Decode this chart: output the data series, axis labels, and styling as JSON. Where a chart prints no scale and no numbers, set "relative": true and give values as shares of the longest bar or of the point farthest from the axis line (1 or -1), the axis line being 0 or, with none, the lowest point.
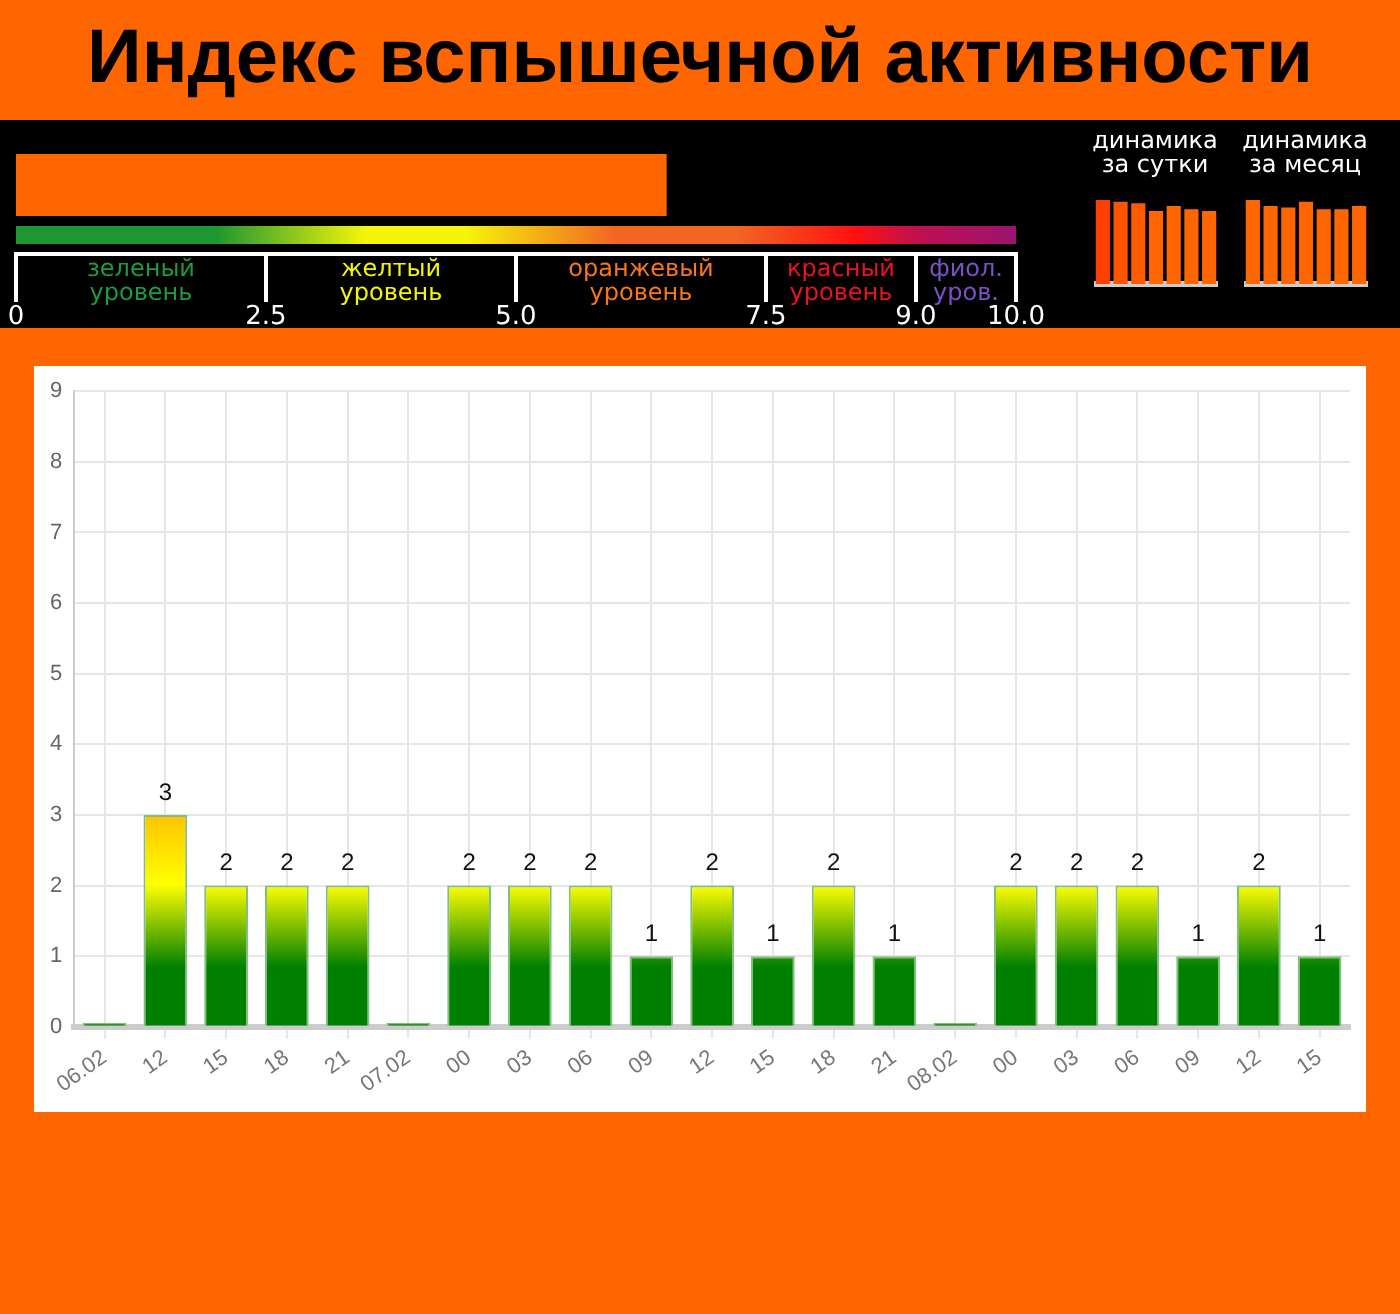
{
  "chart_data": [
    {
      "type": "bar",
      "title": "Индекс вспышечной активности",
      "orientation": "horizontal",
      "categories": [
        null
      ],
      "values": [
        6.5
      ],
      "color": "#ff6600",
      "xlim": [
        0,
        10
      ],
      "xticks": [
        0,
        2.5,
        {
          "value": 5,
          "label": "5.0"
        },
        7.5,
        {
          "value": 9,
          "label": "9.0"
        },
        {
          "value": 10,
          "label": "10.0"
        }
      ],
      "annotations": [
        "зеленый уровень",
        "желтый уровень",
        "оранжевый уровень",
        "красный уровень",
        "фиол. уров."
      ]
    },
    {
      "type": "bar",
      "title": "динамика за сутки",
      "relative": true,
      "categories": [
        null,
        null,
        null,
        null,
        null,
        null,
        null
      ],
      "values": [
        1,
        0.98,
        0.96,
        0.87,
        0.93,
        0.89,
        0.87
      ],
      "colors": [
        "#ff4000",
        "#ff5500",
        "#ff5a00",
        "#ff6600",
        "#ff6600",
        "#ff6600",
        "#ff6600"
      ]
    },
    {
      "type": "bar",
      "title": "динамика за месяц",
      "relative": true,
      "categories": [
        null,
        null,
        null,
        null,
        null,
        null,
        null
      ],
      "values": [
        1,
        0.93,
        0.91,
        0.98,
        0.89,
        0.89,
        0.93
      ],
      "colors": [
        "#ff6600",
        "#ff6600",
        "#ff6600",
        "#ff6600",
        "#ff6600",
        "#ff6600",
        "#ff6600"
      ]
    },
    {
      "type": "bar",
      "categories": [
        "06.02",
        "12",
        "15",
        "18",
        "21",
        "07.02",
        "00",
        "03",
        "06",
        "09",
        "12",
        "15",
        "18",
        "21",
        "08.02",
        "00",
        "03",
        "06",
        "09",
        "12",
        "15"
      ],
      "values": [
        0,
        3,
        2,
        2,
        2,
        0,
        2,
        2,
        2,
        1,
        2,
        1,
        2,
        1,
        0,
        2,
        2,
        2,
        1,
        2,
        1
      ],
      "value_labels": [
        null,
        "3",
        "2",
        "2",
        "2",
        null,
        "2",
        "2",
        "2",
        "1",
        "2",
        "1",
        "2",
        "1",
        null,
        "2",
        "2",
        "2",
        "1",
        "2",
        "1"
      ],
      "color": "#008000",
      "ylim": [
        0,
        9
      ],
      "yticks": [
        0,
        1,
        2,
        3,
        4,
        5,
        6,
        7,
        8,
        9
      ],
      "grid": true
    }
  ]
}
